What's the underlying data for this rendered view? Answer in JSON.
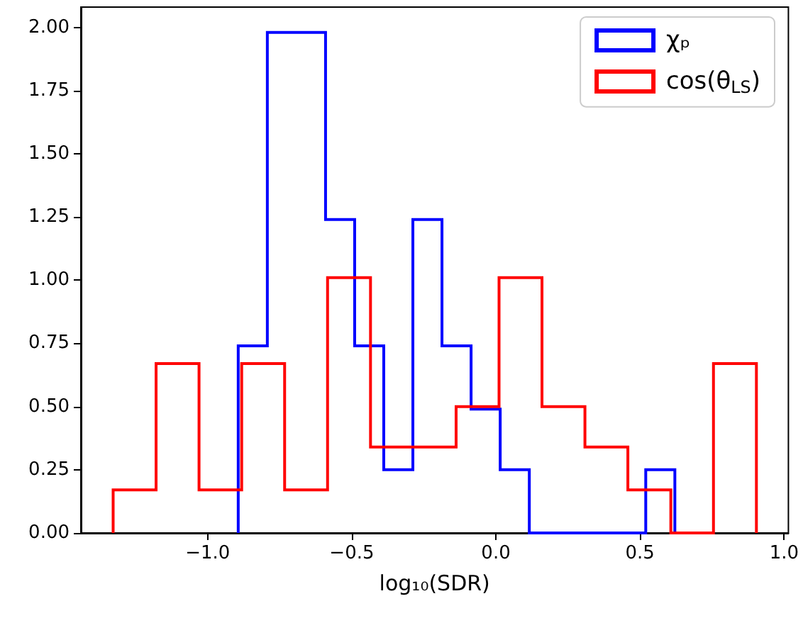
{
  "chart_data": {
    "type": "step",
    "xlabel": "log₁₀(SDR)",
    "series": [
      {
        "name": "χₚ",
        "color": "#0000ff",
        "x": [
          -0.894,
          -0.894,
          -0.793,
          -0.692,
          -0.591,
          -0.49,
          -0.389,
          -0.288,
          -0.187,
          -0.086,
          0.015,
          0.116,
          0.217,
          0.318,
          0.419,
          0.52,
          0.621
        ],
        "values": [
          0,
          0.74,
          1.98,
          1.98,
          1.24,
          0.74,
          0.25,
          1.24,
          0.74,
          0.49,
          0.25,
          0,
          0,
          0,
          0,
          0.25,
          0
        ]
      },
      {
        "name": "cos(θ$_{LS}$)",
        "color": "#ff0000",
        "x": [
          -1.328,
          -1.328,
          -1.179,
          -1.03,
          -0.882,
          -0.733,
          -0.584,
          -0.435,
          -0.286,
          -0.138,
          0.011,
          0.16,
          0.309,
          0.458,
          0.607,
          0.755,
          0.904
        ],
        "values": [
          0,
          0.17,
          0.67,
          0.17,
          0.67,
          0.17,
          1.01,
          0.34,
          0.34,
          0.5,
          1.01,
          0.5,
          0.34,
          0.17,
          0,
          0.67,
          0
        ]
      }
    ],
    "xlim": [
      -1.44,
      1.015
    ],
    "xticks": [
      {
        "value": -1,
        "label": "−1.0"
      },
      {
        "value": -0.5,
        "label": "−0.5"
      },
      {
        "value": 0,
        "label": "0.0"
      },
      {
        "value": 0.5,
        "label": "0.5"
      },
      {
        "value": 1,
        "label": "1.0"
      }
    ],
    "ylim": [
      0,
      2.08
    ],
    "yticks": [
      {
        "value": 0,
        "label": "0.00"
      },
      {
        "value": 0.25,
        "label": "0.25"
      },
      {
        "value": 0.5,
        "label": "0.50"
      },
      {
        "value": 0.75,
        "label": "0.75"
      },
      {
        "value": 1,
        "label": "1.00"
      },
      {
        "value": 1.25,
        "label": "1.25"
      },
      {
        "value": 1.5,
        "label": "1.50"
      },
      {
        "value": 1.75,
        "label": "1.75"
      },
      {
        "value": 2,
        "label": "2.00"
      }
    ],
    "legend": "top right",
    "grid": false
  }
}
